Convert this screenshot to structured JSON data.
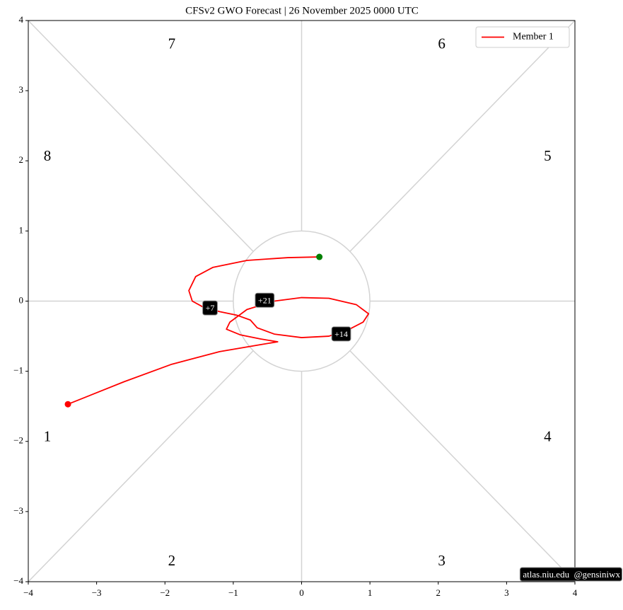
{
  "chart_data": {
    "type": "line",
    "title": "CFSv2 GWO Forecast   |   26  November  2025 0000 UTC",
    "xlim": [
      -4,
      4
    ],
    "ylim": [
      -4,
      4
    ],
    "xticks": [
      {
        "value": -4,
        "label": "−4"
      },
      {
        "value": -3,
        "label": "−3"
      },
      {
        "value": -2,
        "label": "−2"
      },
      {
        "value": -1,
        "label": "−1"
      },
      0,
      1,
      2,
      3,
      4
    ],
    "yticks": [
      {
        "value": -4,
        "label": "−4"
      },
      {
        "value": -3,
        "label": "−3"
      },
      {
        "value": -2,
        "label": "−2"
      },
      {
        "value": -1,
        "label": "−1"
      },
      0,
      1,
      2,
      3,
      4
    ],
    "legend": "upper right",
    "series": [
      {
        "name": "Member 1",
        "color": "#ff0000",
        "start_color": "#008000",
        "end_color": "#ff0000",
        "x": [
          0.26,
          -0.2,
          -0.8,
          -1.3,
          -1.55,
          -1.65,
          -1.6,
          -1.45,
          -1.2,
          -0.95,
          -0.75,
          -0.65,
          -0.4,
          0.0,
          0.4,
          0.7,
          0.9,
          0.98,
          0.8,
          0.4,
          0.0,
          -0.4,
          -0.8,
          -1.05,
          -1.1,
          -0.9,
          -0.6,
          -0.35,
          -0.6,
          -1.2,
          -1.9,
          -2.6,
          -3.42
        ],
        "y": [
          0.63,
          0.62,
          0.58,
          0.48,
          0.35,
          0.15,
          0.0,
          -0.08,
          -0.15,
          -0.2,
          -0.27,
          -0.38,
          -0.47,
          -0.52,
          -0.5,
          -0.4,
          -0.3,
          -0.18,
          -0.05,
          0.04,
          0.05,
          0.0,
          -0.12,
          -0.3,
          -0.4,
          -0.48,
          -0.54,
          -0.58,
          -0.62,
          -0.72,
          -0.9,
          -1.15,
          -1.47
        ]
      }
    ],
    "annotations": [
      {
        "text": "+7",
        "x": -1.34,
        "y": -0.11
      },
      {
        "text": "+14",
        "x": 0.58,
        "y": -0.48
      },
      {
        "text": "+21",
        "x": -0.54,
        "y": 0.0
      }
    ],
    "phase_labels": [
      "1",
      "2",
      "3",
      "4",
      "5",
      "6",
      "7",
      "8"
    ],
    "phase_color": "#0000ff",
    "watermark": "atlas.niu.edu  @gensiniwx"
  }
}
